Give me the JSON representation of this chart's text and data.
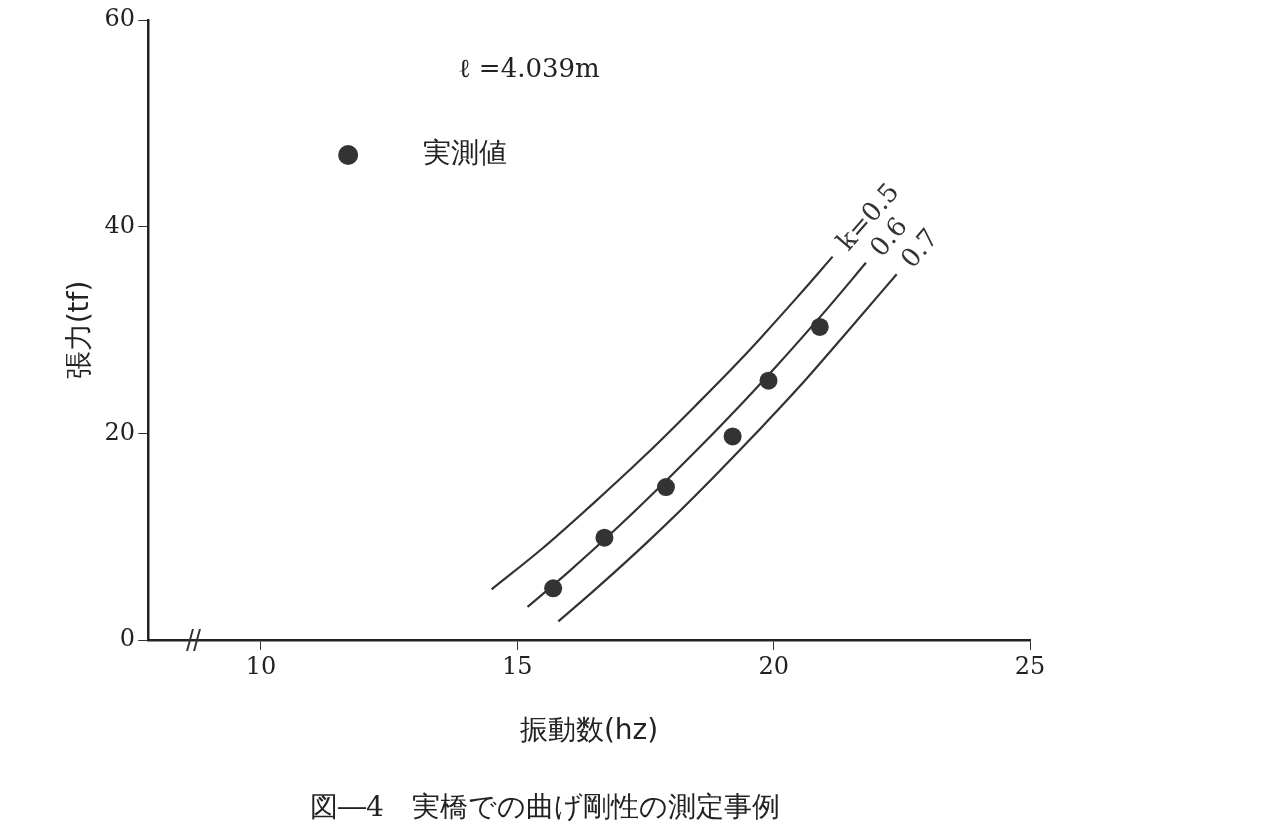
{
  "chart_data": {
    "type": "scatter",
    "title": "図―4　実橋での曲げ剛性の測定事例",
    "xlabel": "振動数(hz)",
    "ylabel": "張力(tf)",
    "annotations": [
      "ℓ =4.039m"
    ],
    "xlim": [
      7.8,
      25
    ],
    "xticks": [
      10,
      15,
      20,
      25
    ],
    "ylim": [
      0,
      60
    ],
    "yticks": [
      0,
      20,
      40,
      60
    ],
    "grid": false,
    "legend": "top left",
    "marker": "circle",
    "series": [
      {
        "name": "実測値",
        "type": "scatter",
        "color": "#333333",
        "x": [
          15.7,
          16.7,
          17.9,
          19.2,
          19.9,
          20.9
        ],
        "values": [
          5.0,
          9.9,
          14.8,
          19.7,
          25.1,
          30.3
        ]
      },
      {
        "name": "k=0.5",
        "type": "line",
        "marker": "none",
        "color": "#333333",
        "x": [
          14.5,
          15.5,
          16.5,
          17.5,
          18.5,
          19.5,
          20.5,
          21.15
        ],
        "values": [
          4.9,
          8.9,
          13.3,
          17.9,
          22.8,
          27.9,
          33.4,
          37.1
        ]
      },
      {
        "name": "0.6",
        "type": "line",
        "marker": "none",
        "color": "#333333",
        "x": [
          15.2,
          16,
          17,
          18,
          19,
          20,
          21,
          21.8
        ],
        "values": [
          3.2,
          6.6,
          11.1,
          15.9,
          20.9,
          26.2,
          31.8,
          36.5
        ]
      },
      {
        "name": "0.7",
        "type": "line",
        "marker": "none",
        "color": "#333333",
        "x": [
          15.8,
          16.5,
          17.5,
          18.5,
          19.5,
          20.5,
          21.5,
          22.4
        ],
        "values": [
          1.8,
          4.8,
          9.3,
          14.1,
          19.2,
          24.5,
          30.2,
          35.4
        ]
      }
    ]
  }
}
